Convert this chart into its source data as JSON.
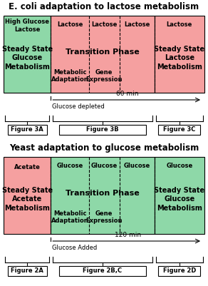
{
  "title1": "E. coli adaptation to lactose metabolism",
  "title2": "Yeast adaptation to glucose metabolism",
  "green": "#8ed8a8",
  "red": "#f5a0a0",
  "white": "#ffffff",
  "black": "#000000",
  "ecoli": {
    "left_color": "#8ed8a8",
    "mid_color": "#f5a0a0",
    "right_color": "#f5a0a0",
    "left_top": "High Glucose\nLactose",
    "left_main": "Steady State\nGlucose\nMetabolism",
    "mid_top1": "Lactose",
    "mid_top2": "Lactose",
    "mid_top3": "Lactose",
    "mid_main": "Transition Phase",
    "mid_sub1": "Metabolic\nAdaptation",
    "mid_sub2": "Gene\nExpression",
    "right_top": "Lactose",
    "right_main": "Steady State\nLactose\nMetabolism",
    "arrow_label": "60 min",
    "event_label": "Glucose depleted",
    "fig_labels": [
      "Figure 3A",
      "Figure 3B",
      "Figure 3C"
    ]
  },
  "yeast": {
    "left_color": "#f5a0a0",
    "mid_color": "#8ed8a8",
    "right_color": "#8ed8a8",
    "left_top": "Acetate",
    "left_main": "Steady State\nAcetate\nMetabolism",
    "mid_top1": "Glucose",
    "mid_top2": "Glucose",
    "mid_top3": "Glucose",
    "mid_main": "Transition Phase",
    "mid_sub1": "Metabolic\nAdaptation",
    "mid_sub2": "Gene\nExpression",
    "right_top": "Glucose",
    "right_main": "Steady State\nGlucose\nMetabolism",
    "arrow_label": "120 min",
    "event_label": "Glucose Added",
    "fig_labels": [
      "Figure 2A",
      "Figure 2B,C",
      "Figure 2D"
    ]
  }
}
